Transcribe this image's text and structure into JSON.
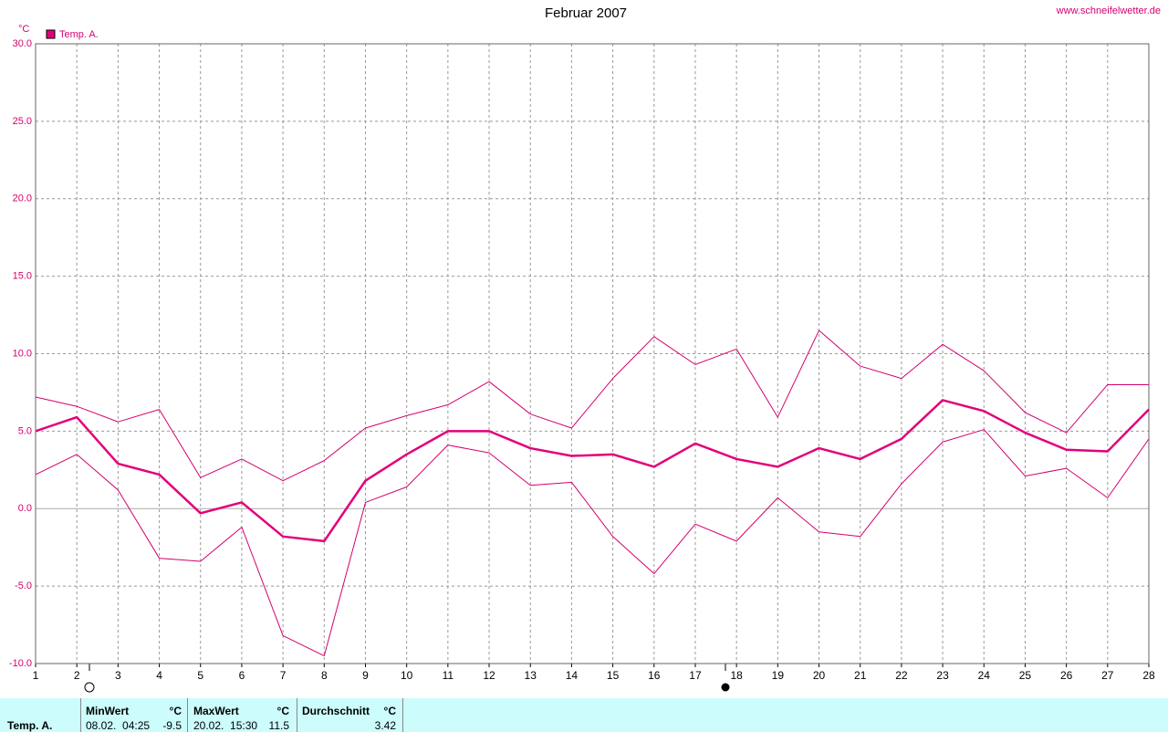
{
  "chart_data": {
    "type": "line",
    "title": "Februar 2007",
    "source": "www.schneifelwetter.de",
    "y_label": "°C",
    "x": [
      1,
      2,
      3,
      4,
      5,
      6,
      7,
      8,
      9,
      10,
      11,
      12,
      13,
      14,
      15,
      16,
      17,
      18,
      19,
      20,
      21,
      22,
      23,
      24,
      25,
      26,
      27,
      28
    ],
    "series": [
      {
        "color": "#d4006f",
        "width": 1,
        "values": [
          7.2,
          6.6,
          5.6,
          6.4,
          2.0,
          3.2,
          1.8,
          3.1,
          5.2,
          6.0,
          6.7,
          8.2,
          6.1,
          5.2,
          8.4,
          11.1,
          9.3,
          10.3,
          5.9,
          11.5,
          9.2,
          8.4,
          10.6,
          8.9,
          6.2,
          4.9,
          8.0,
          8.0
        ]
      },
      {
        "name": "Temp. A.",
        "color": "#e2007a",
        "width": 2.5,
        "values": [
          5.0,
          5.9,
          2.9,
          2.2,
          -0.3,
          0.4,
          -1.8,
          -2.1,
          1.8,
          3.5,
          5.0,
          5.0,
          3.9,
          3.4,
          3.5,
          2.7,
          4.2,
          3.2,
          2.7,
          3.9,
          3.2,
          4.5,
          7.0,
          6.3,
          4.9,
          3.8,
          3.7,
          6.4
        ]
      },
      {
        "color": "#d4006f",
        "width": 1,
        "values": [
          2.2,
          3.5,
          1.2,
          -3.2,
          -3.4,
          -1.2,
          -8.2,
          -9.5,
          0.4,
          1.4,
          4.1,
          3.6,
          1.5,
          1.7,
          -1.8,
          -4.2,
          -1.0,
          -2.1,
          0.7,
          -1.5,
          -1.8,
          1.6,
          4.3,
          5.1,
          2.1,
          2.6,
          0.7,
          4.5
        ]
      }
    ],
    "xlim": [
      1,
      28
    ],
    "xticks": [
      1,
      2,
      3,
      4,
      5,
      6,
      7,
      8,
      9,
      10,
      11,
      12,
      13,
      14,
      15,
      16,
      17,
      18,
      19,
      20,
      21,
      22,
      23,
      24,
      25,
      26,
      27,
      28
    ],
    "ylim": [
      -10,
      30
    ],
    "yticks": [
      {
        "value": -10,
        "label": "-10.0"
      },
      {
        "value": -5,
        "label": "-5.0"
      },
      {
        "value": 0,
        "label": "0.0"
      },
      {
        "value": 5,
        "label": "5.0"
      },
      {
        "value": 10,
        "label": "10.0"
      },
      {
        "value": 15,
        "label": "15.0"
      },
      {
        "value": 20,
        "label": "20.0"
      },
      {
        "value": 25,
        "label": "25.0"
      },
      {
        "value": 30,
        "label": "30.0"
      }
    ],
    "grid": true
  },
  "stats": {
    "label": "Temp. A.",
    "min": {
      "header": "MinWert",
      "unit": "°C",
      "time": "08.02.  04:25",
      "value": "-9.5"
    },
    "max": {
      "header": "MaxWert",
      "unit": "°C",
      "time": "20.02.  15:30",
      "value": "11.5"
    },
    "avg": {
      "header": "Durchschnitt",
      "unit": "°C",
      "value": "3.42"
    }
  }
}
